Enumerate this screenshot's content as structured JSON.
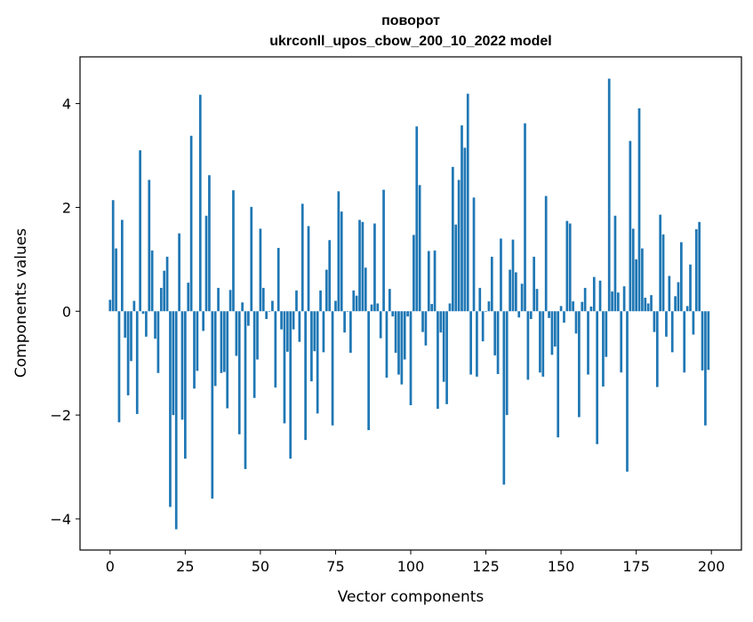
{
  "chart_data": {
    "type": "bar",
    "title": "поворот",
    "subtitle": "ukrconll_upos_cbow_200_10_2022 model",
    "xlabel": "Vector components",
    "ylabel": "Components values",
    "xlim": [
      -10,
      210
    ],
    "ylim": [
      -4.6,
      4.9
    ],
    "xticks": [
      0,
      25,
      50,
      75,
      100,
      125,
      150,
      175,
      200
    ],
    "yticks": [
      -4,
      -2,
      0,
      2,
      4
    ],
    "grid": false,
    "bar_color": "#1f77b4",
    "x": [
      0,
      1,
      2,
      3,
      4,
      5,
      6,
      7,
      8,
      9,
      10,
      11,
      12,
      13,
      14,
      15,
      16,
      17,
      18,
      19,
      20,
      21,
      22,
      23,
      24,
      25,
      26,
      27,
      28,
      29,
      30,
      31,
      32,
      33,
      34,
      35,
      36,
      37,
      38,
      39,
      40,
      41,
      42,
      43,
      44,
      45,
      46,
      47,
      48,
      49,
      50,
      51,
      52,
      53,
      54,
      55,
      56,
      57,
      58,
      59,
      60,
      61,
      62,
      63,
      64,
      65,
      66,
      67,
      68,
      69,
      70,
      71,
      72,
      73,
      74,
      75,
      76,
      77,
      78,
      79,
      80,
      81,
      82,
      83,
      84,
      85,
      86,
      87,
      88,
      89,
      90,
      91,
      92,
      93,
      94,
      95,
      96,
      97,
      98,
      99,
      100,
      101,
      102,
      103,
      104,
      105,
      106,
      107,
      108,
      109,
      110,
      111,
      112,
      113,
      114,
      115,
      116,
      117,
      118,
      119,
      120,
      121,
      122,
      123,
      124,
      125,
      126,
      127,
      128,
      129,
      130,
      131,
      132,
      133,
      134,
      135,
      136,
      137,
      138,
      139,
      140,
      141,
      142,
      143,
      144,
      145,
      146,
      147,
      148,
      149,
      150,
      151,
      152,
      153,
      154,
      155,
      156,
      157,
      158,
      159,
      160,
      161,
      162,
      163,
      164,
      165,
      166,
      167,
      168,
      169,
      170,
      171,
      172,
      173,
      174,
      175,
      176,
      177,
      178,
      179,
      180,
      181,
      182,
      183,
      184,
      185,
      186,
      187,
      188,
      189,
      190,
      191,
      192,
      193,
      194,
      195,
      196,
      197,
      198,
      199
    ],
    "values": [
      0.22,
      2.14,
      1.21,
      -2.14,
      1.76,
      -0.51,
      -1.62,
      -0.96,
      0.2,
      -1.98,
      3.1,
      -0.05,
      -0.49,
      2.53,
      1.17,
      -0.53,
      -1.19,
      0.45,
      0.78,
      1.05,
      -3.77,
      -2.0,
      -4.2,
      1.5,
      -2.09,
      -2.84,
      0.55,
      3.38,
      -1.49,
      -1.15,
      4.17,
      -0.38,
      1.84,
      2.62,
      -3.61,
      -1.44,
      0.45,
      -1.19,
      -1.17,
      -1.87,
      0.41,
      2.33,
      -0.86,
      -2.37,
      0.17,
      -3.04,
      -0.28,
      2.01,
      -1.67,
      -0.93,
      1.59,
      0.45,
      -0.15,
      0.0,
      0.2,
      -1.47,
      1.22,
      -0.35,
      -2.16,
      -0.78,
      -2.84,
      -0.35,
      0.4,
      -0.59,
      2.07,
      -2.48,
      1.64,
      -1.35,
      -0.77,
      -1.97,
      0.4,
      -0.79,
      0.8,
      1.37,
      -2.2,
      0.2,
      2.31,
      1.92,
      -0.41,
      0.0,
      -0.8,
      0.4,
      0.3,
      1.76,
      1.72,
      0.84,
      -2.29,
      0.13,
      1.69,
      0.15,
      -0.52,
      2.34,
      -1.28,
      0.43,
      -0.1,
      -0.8,
      -1.22,
      -1.41,
      -0.93,
      -0.1,
      -1.81,
      1.47,
      3.56,
      2.43,
      -0.4,
      -0.66,
      1.16,
      0.14,
      1.17,
      -1.88,
      -0.41,
      -1.36,
      -1.79,
      0.15,
      2.78,
      1.67,
      2.53,
      3.58,
      3.15,
      4.19,
      -1.22,
      2.19,
      -1.26,
      0.45,
      -0.58,
      0.0,
      0.19,
      1.05,
      -0.85,
      -1.21,
      1.4,
      -3.34,
      -2.0,
      0.8,
      1.38,
      0.75,
      -0.12,
      0.53,
      3.62,
      -1.32,
      -0.15,
      1.05,
      0.43,
      -1.18,
      -1.26,
      2.22,
      -0.13,
      -0.84,
      -0.68,
      -2.43,
      0.1,
      -0.22,
      1.74,
      1.69,
      0.19,
      -0.43,
      -2.04,
      0.18,
      0.45,
      -1.22,
      0.09,
      0.66,
      -2.56,
      0.59,
      -1.45,
      -0.88,
      4.48,
      0.38,
      1.84,
      0.36,
      -1.18,
      0.48,
      -3.09,
      3.28,
      1.59,
      1.0,
      3.91,
      1.21,
      0.26,
      0.15,
      0.31,
      -0.4,
      -1.46,
      1.86,
      1.48,
      -0.49,
      0.68,
      -0.79,
      0.29,
      0.56,
      1.33,
      -1.18,
      0.1,
      0.9,
      -0.45,
      1.58,
      1.72,
      -1.14,
      -2.2,
      -1.13
    ]
  }
}
